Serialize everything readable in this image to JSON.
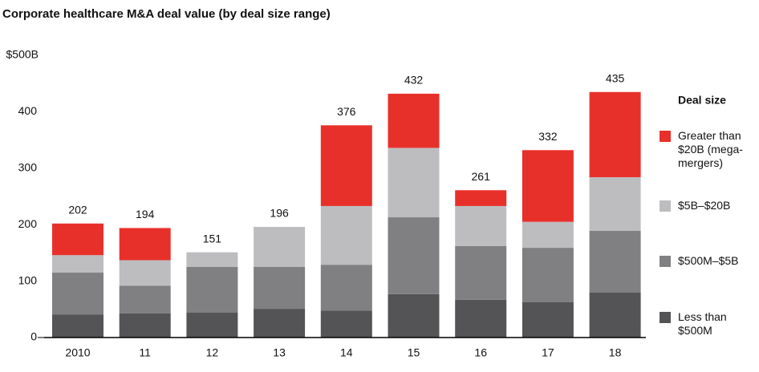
{
  "chart_data": {
    "type": "stacked_bar",
    "title": "Corporate healthcare M&A deal value (by deal size range)",
    "categories": [
      "2010",
      "11",
      "12",
      "13",
      "14",
      "15",
      "16",
      "17",
      "18"
    ],
    "series": [
      {
        "name": "Less than $500M",
        "color": "#545456",
        "values": [
          41,
          43,
          44,
          51,
          48,
          77,
          67,
          63,
          80
        ]
      },
      {
        "name": "$500M–$5B",
        "color": "#808083",
        "values": [
          74,
          49,
          81,
          74,
          81,
          136,
          95,
          96,
          109
        ]
      },
      {
        "name": "$5B–$20B",
        "color": "#bdbdc0",
        "values": [
          31,
          45,
          26,
          71,
          104,
          123,
          71,
          46,
          95
        ]
      },
      {
        "name": "Greater than $20B (mega-mergers)",
        "color": "#e8302a",
        "values": [
          56,
          57,
          null,
          null,
          143,
          96,
          28,
          127,
          151
        ]
      }
    ],
    "totals": [
      202,
      194,
      151,
      196,
      376,
      432,
      261,
      332,
      435
    ],
    "legend_title": "Deal size",
    "ylim": [
      0,
      500
    ],
    "yticks": [
      0,
      100,
      200,
      300,
      400,
      {
        "value": 500,
        "label": "$500B"
      }
    ],
    "grid": false
  }
}
